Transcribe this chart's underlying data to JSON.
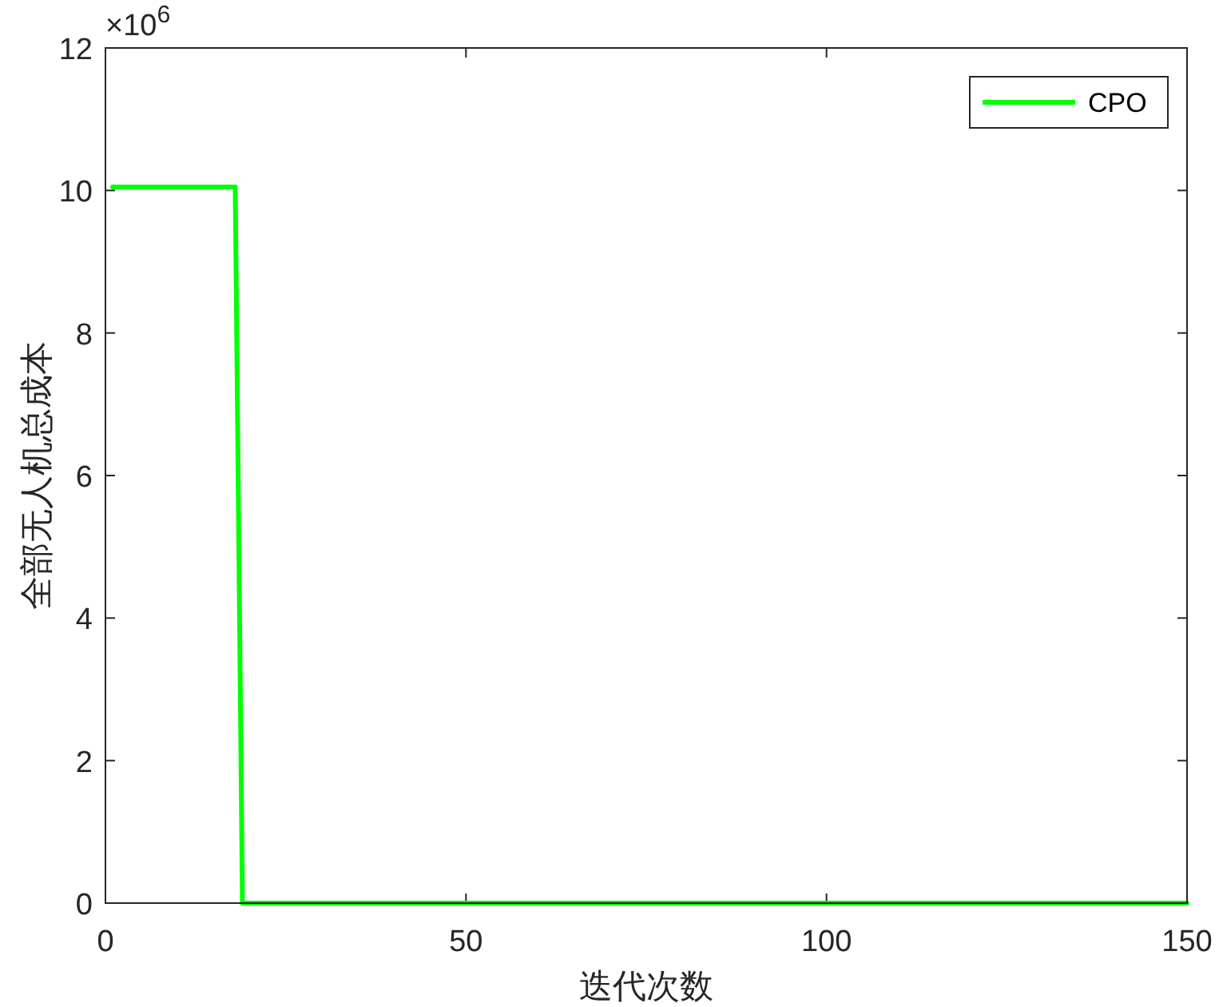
{
  "chart_data": {
    "type": "line",
    "xlabel": "迭代次数",
    "ylabel": "全部无人机总成本",
    "annotations": [
      "×10$^{6}$"
    ],
    "series": [
      {
        "name": "CPO",
        "color": "#00ff00",
        "x": [
          1,
          18,
          19,
          150
        ],
        "values": [
          10.05,
          10.05,
          0,
          0
        ]
      }
    ],
    "xlim": [
      0,
      150
    ],
    "xticks": [
      0,
      50,
      100,
      150
    ],
    "ylim": [
      0,
      12
    ],
    "yticks": [
      0,
      2,
      4,
      6,
      8,
      10,
      12
    ],
    "grid": false,
    "legend": "top right",
    "marker": "none",
    "line_style": "solid"
  }
}
